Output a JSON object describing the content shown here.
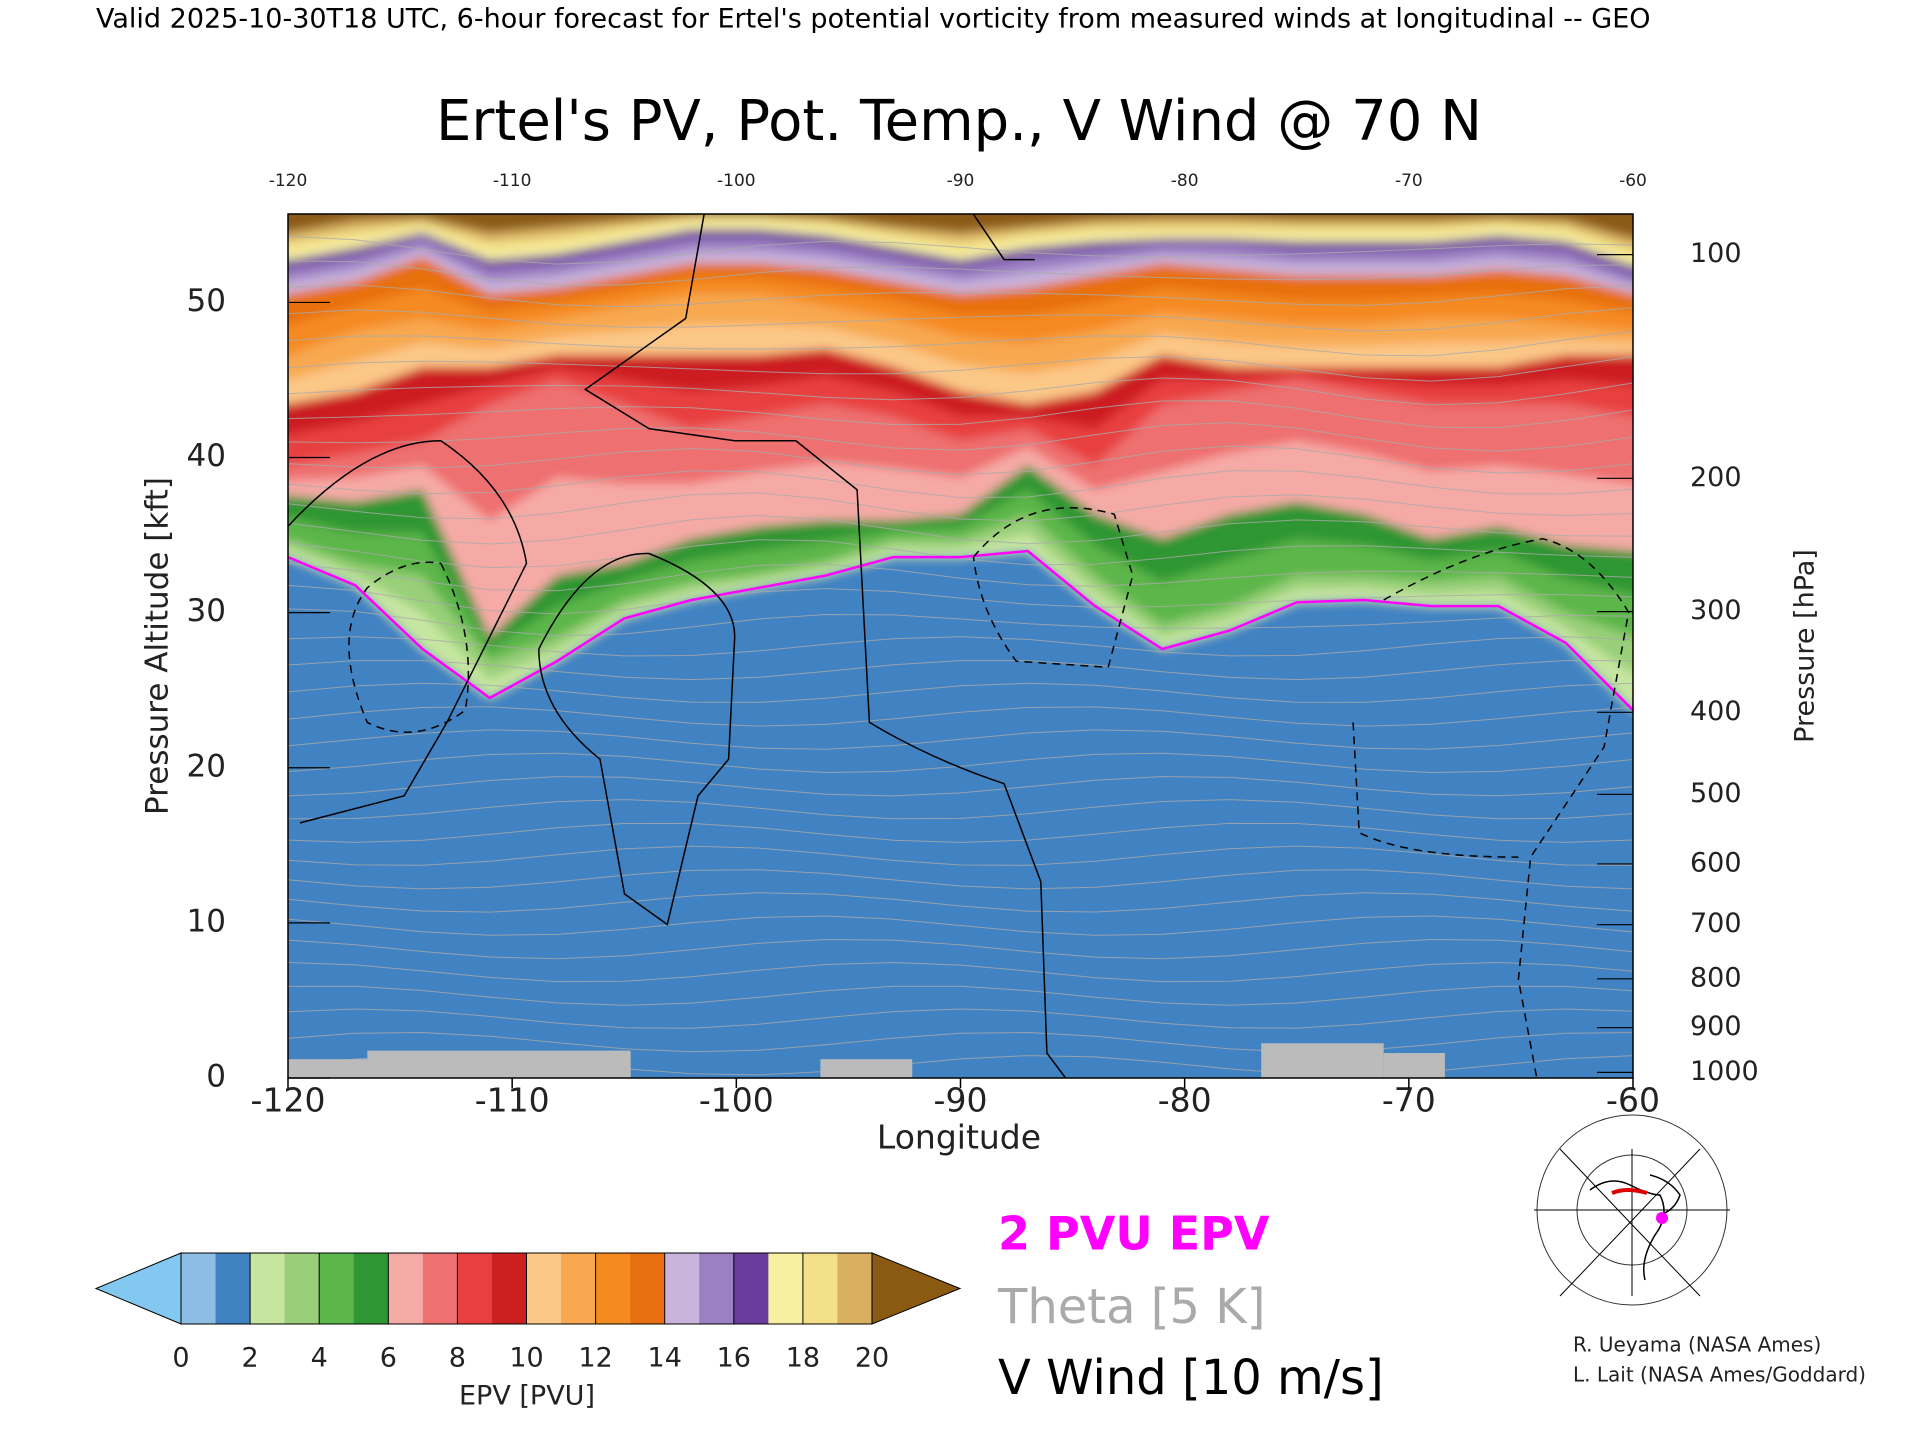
{
  "chart_data": {
    "type": "contour",
    "header": "Valid 2025-10-30T18 UTC, 6-hour forecast for Ertel's potential vorticity from measured winds at longitudinal -- GEO",
    "title": "Ertel's PV, Pot. Temp., V Wind @ 70 N",
    "x_label": "Longitude",
    "y_label": "Pressure Altitude [kft]",
    "y2_label": "Pressure [hPa]",
    "xlim": [
      -120,
      -60
    ],
    "xticks": [
      -120,
      -110,
      -100,
      -90,
      -80,
      -70,
      -60
    ],
    "ylim": [
      0,
      55.7
    ],
    "yticks": [
      0,
      10,
      20,
      30,
      40,
      50
    ],
    "y2scale": "pressure-altitude",
    "y2ticks": [
      100,
      200,
      300,
      400,
      500,
      600,
      700,
      800,
      900,
      1000
    ],
    "colorbar": {
      "label": "EPV [PVU]",
      "levels": [
        0,
        2,
        4,
        6,
        8,
        10,
        12,
        14,
        16,
        18,
        20
      ],
      "colors": [
        "#8dbde3",
        "#3f82c2",
        "#c6e6a0",
        "#98cf78",
        "#5cb64a",
        "#2e9632",
        "#f6aaa6",
        "#ee7070",
        "#e84040",
        "#cc1f20",
        "#fbc888",
        "#f8a850",
        "#f58a20",
        "#e87010",
        "#c8b4dc",
        "#9c80c4",
        "#6a3c9c",
        "#f6f0a0",
        "#f4e088",
        "#d8b060"
      ],
      "under_color": "#82c8f0",
      "over_color": "#8b5a12"
    },
    "legend": [
      {
        "name": "2 PVU EPV",
        "color": "#ff00ff"
      },
      {
        "name": "Theta [5 K]",
        "color": "#aaaaaa"
      },
      {
        "name": "V Wind [10 m/s]",
        "color": "#000000"
      }
    ],
    "credits": [
      "R. Ueyama (NASA Ames)",
      "L. Lait (NASA Ames/Goddard)"
    ]
  }
}
